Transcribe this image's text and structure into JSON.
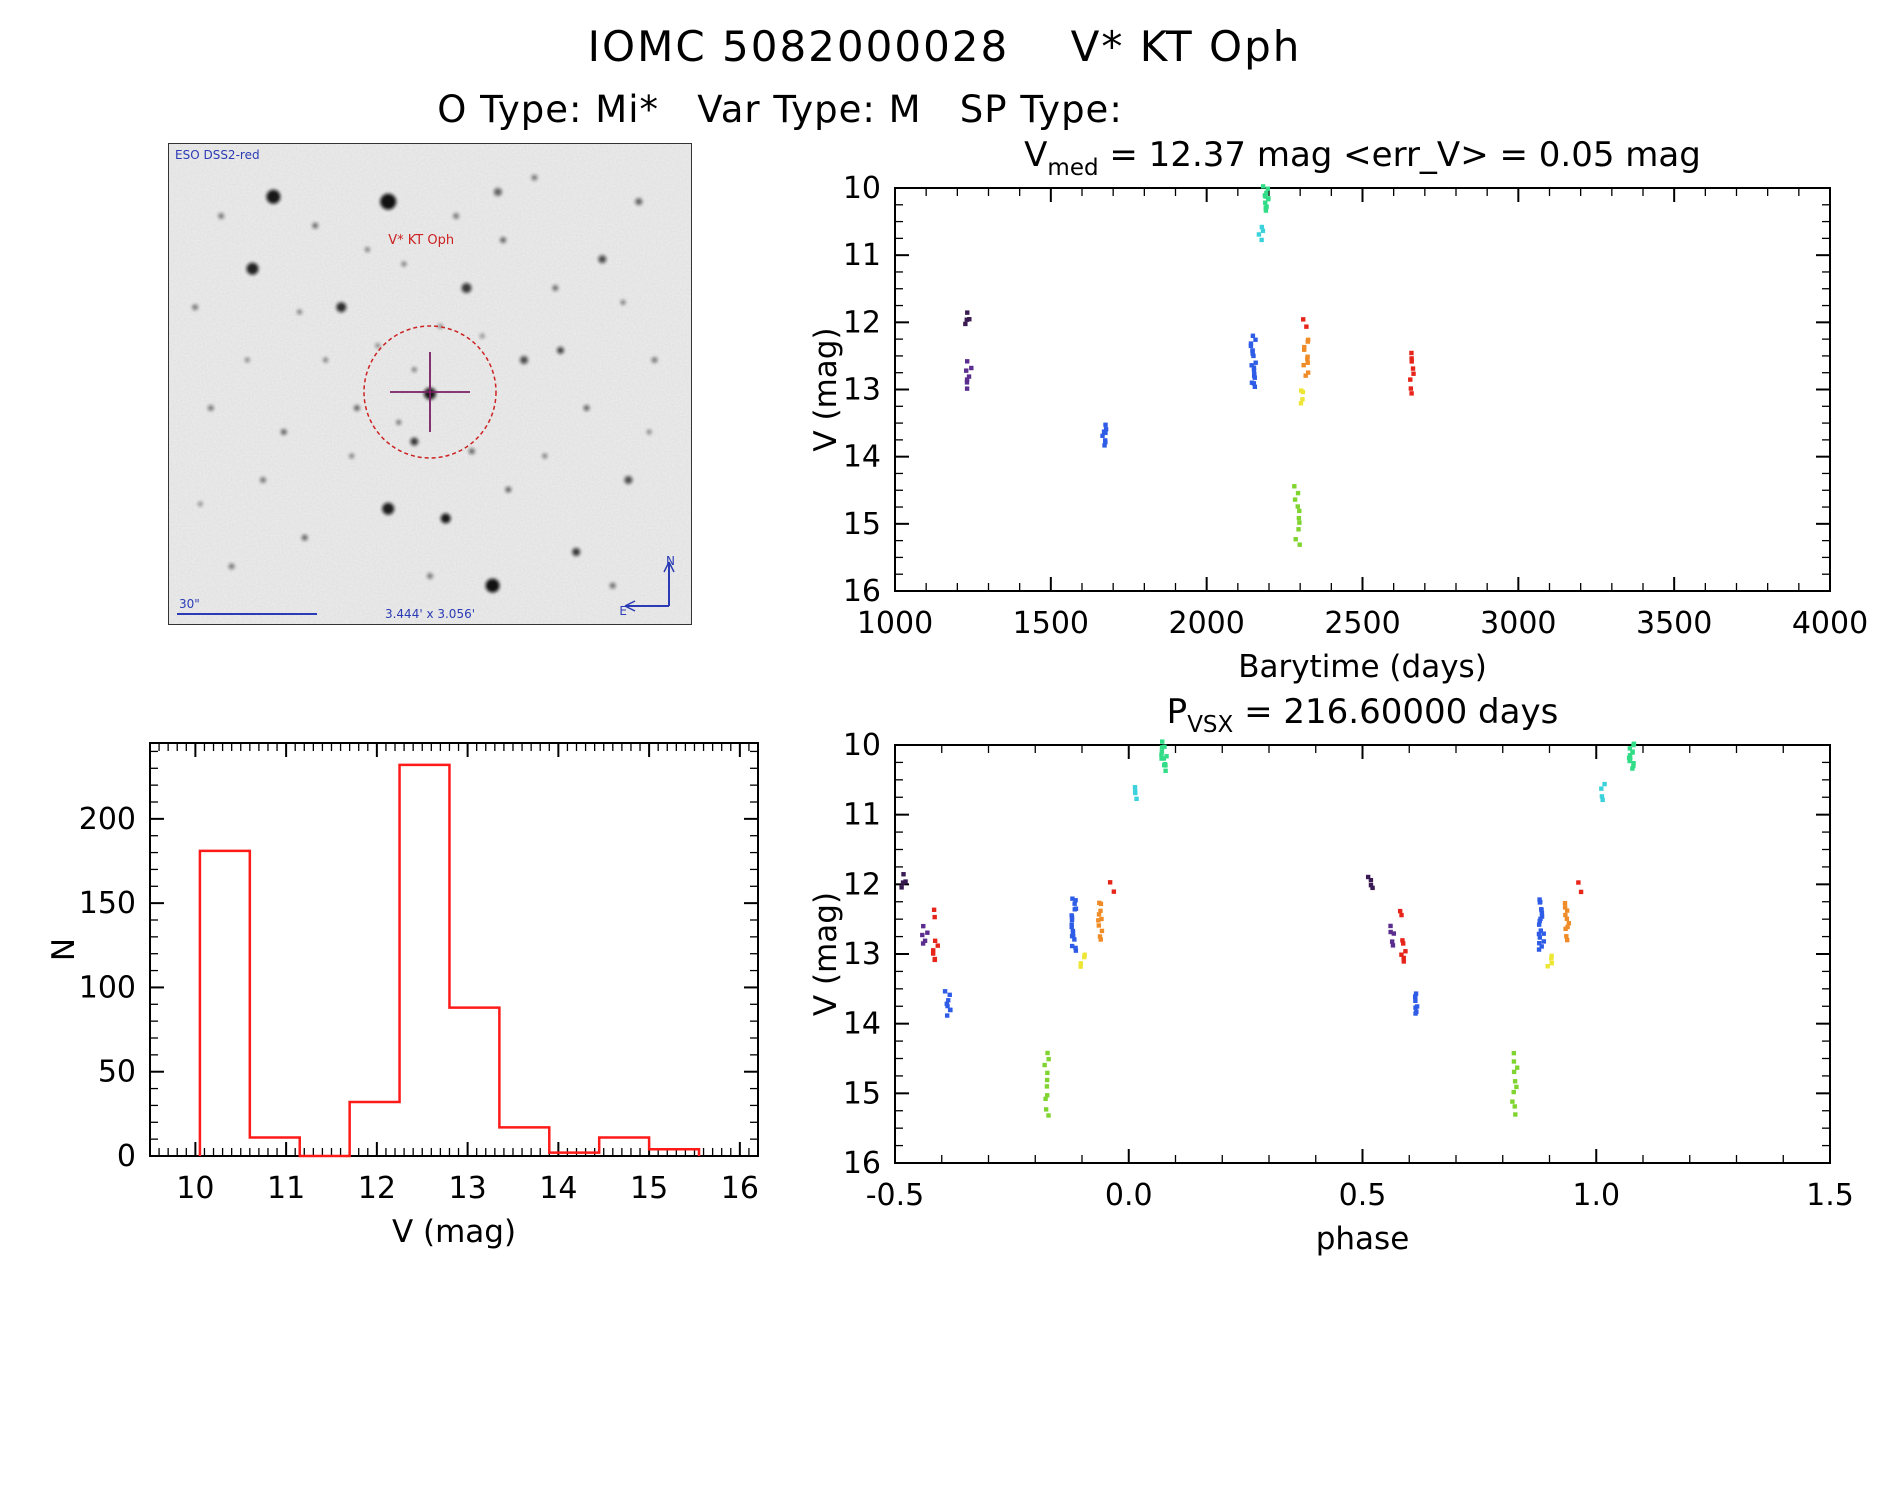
{
  "page": {
    "title": "IOMC 5082000028    V* KT Oph",
    "subtitle": "O Type: Mi*   Var Type: M   SP Type:"
  },
  "finder": {
    "survey_label": "ESO DSS2-red",
    "star_label": "V* KT Oph",
    "size_label": "3.444' x 3.056'",
    "scalebar_label": "30\"",
    "compass_north": "N",
    "compass_east": "E",
    "marker_color": "#cc2222",
    "cross_color": "#7a1f62",
    "annotation_color": "#2a3bb5",
    "stars": [
      [
        20,
        11,
        7,
        0.95
      ],
      [
        42,
        12,
        8,
        0.98
      ],
      [
        16,
        26,
        6,
        0.9
      ],
      [
        33,
        34,
        5,
        0.85
      ],
      [
        57,
        30,
        5,
        0.8
      ],
      [
        83,
        24,
        4,
        0.7
      ],
      [
        90,
        12,
        3.5,
        0.6
      ],
      [
        70,
        7,
        3,
        0.5
      ],
      [
        47,
        62,
        4,
        0.8
      ],
      [
        58,
        64,
        3,
        0.6
      ],
      [
        42,
        76,
        6,
        0.92
      ],
      [
        53,
        78,
        5,
        0.95
      ],
      [
        62,
        92,
        7,
        0.98
      ],
      [
        78,
        85,
        4,
        0.8
      ],
      [
        12,
        88,
        3,
        0.5
      ],
      [
        26,
        82,
        3,
        0.6
      ],
      [
        8,
        55,
        3,
        0.5
      ],
      [
        22,
        60,
        3,
        0.6
      ],
      [
        5,
        34,
        3,
        0.5
      ],
      [
        68,
        45,
        4,
        0.7
      ],
      [
        75,
        43,
        3.5,
        0.75
      ],
      [
        80,
        55,
        3,
        0.6
      ],
      [
        88,
        70,
        4,
        0.7
      ],
      [
        93,
        45,
        3,
        0.5
      ],
      [
        36,
        55,
        3,
        0.6
      ],
      [
        30,
        45,
        2.5,
        0.5
      ],
      [
        64,
        20,
        3,
        0.6
      ],
      [
        74,
        30,
        3,
        0.55
      ],
      [
        10,
        15,
        3,
        0.5
      ],
      [
        55,
        15,
        3,
        0.5
      ],
      [
        63,
        10,
        4,
        0.6
      ],
      [
        87,
        33,
        2.5,
        0.5
      ],
      [
        45,
        25,
        2.5,
        0.5
      ],
      [
        25,
        35,
        2.5,
        0.5
      ],
      [
        15,
        45,
        2.5,
        0.45
      ],
      [
        35,
        65,
        2.5,
        0.5
      ],
      [
        65,
        72,
        3,
        0.6
      ],
      [
        72,
        65,
        2.5,
        0.5
      ],
      [
        85,
        92,
        3,
        0.55
      ],
      [
        50,
        90,
        3,
        0.5
      ],
      [
        18,
        70,
        3,
        0.5
      ],
      [
        40,
        42,
        2.5,
        0.45
      ],
      [
        60,
        40,
        2.5,
        0.4
      ],
      [
        92,
        60,
        2.5,
        0.45
      ],
      [
        6,
        75,
        2.5,
        0.4
      ],
      [
        50,
        52,
        6,
        0.95
      ],
      [
        38,
        22,
        2.5,
        0.5
      ],
      [
        52,
        38,
        2.5,
        0.45
      ],
      [
        28,
        17,
        3,
        0.55
      ],
      [
        47,
        47,
        2.5,
        0.5
      ],
      [
        44,
        58,
        2.5,
        0.55
      ]
    ]
  },
  "chart_data": [
    {
      "id": "barytime",
      "type": "scatter",
      "title": {
        "main": "V",
        "sub": "med",
        "rest": " =  12.37 mag  <err_V>  =  0.05 mag"
      },
      "xlabel": "Barytime (days)",
      "ylabel": "V (mag)",
      "xlim": [
        1000,
        4000
      ],
      "ylim": [
        16,
        10
      ],
      "xticks": [
        1000,
        1500,
        2000,
        2500,
        3000,
        3500,
        4000
      ],
      "xtick_labels": [
        "1000",
        "1500",
        "2000",
        "2500",
        "3000",
        "3500",
        "4000"
      ],
      "yticks": [
        10,
        11,
        12,
        13,
        14,
        15,
        16
      ],
      "ytick_labels": [
        "10",
        "11",
        "12",
        "13",
        "14",
        "15",
        "16"
      ],
      "minor_x": 100,
      "minor_y": 0.25,
      "grid": false,
      "clusters": [
        {
          "x": 1230,
          "y": [
            11.88,
            12.03
          ],
          "n": 4,
          "color": "#3a1a52"
        },
        {
          "x": 1237,
          "y": [
            12.6,
            12.98
          ],
          "n": 7,
          "color": "#5b2d8e"
        },
        {
          "x": 1670,
          "y": [
            13.54,
            13.83
          ],
          "n": 8,
          "color": "#2e5ce6"
        },
        {
          "x": 2150,
          "y": [
            12.21,
            12.98
          ],
          "n": 18,
          "color": "#2e5ce6"
        },
        {
          "x": 2190,
          "y": [
            9.98,
            10.35
          ],
          "n": 12,
          "color": "#33dd88"
        },
        {
          "x": 2175,
          "y": [
            10.58,
            10.78
          ],
          "n": 4,
          "color": "#3cd2dc"
        },
        {
          "x": 2315,
          "y": [
            11.95,
            12.08
          ],
          "n": 2,
          "color": "#e62419"
        },
        {
          "x": 2320,
          "y": [
            12.25,
            12.78
          ],
          "n": 10,
          "color": "#f08c28"
        },
        {
          "x": 2305,
          "y": [
            13.0,
            13.2
          ],
          "n": 4,
          "color": "#ede635"
        },
        {
          "x": 2290,
          "y": [
            14.42,
            15.3
          ],
          "n": 10,
          "color": "#7fd42f"
        },
        {
          "x": 2655,
          "y": [
            12.43,
            13.05
          ],
          "n": 8,
          "color": "#e62419"
        }
      ]
    },
    {
      "id": "histogram",
      "type": "bar",
      "xlabel": "V (mag)",
      "ylabel": "N",
      "xlim": [
        9.5,
        16.2
      ],
      "ylim": [
        0,
        245
      ],
      "xticks": [
        10,
        11,
        12,
        13,
        14,
        15,
        16
      ],
      "xtick_labels": [
        "10",
        "11",
        "12",
        "13",
        "14",
        "15",
        "16"
      ],
      "yticks": [
        0,
        50,
        100,
        150,
        200
      ],
      "ytick_labels": [
        "0",
        "50",
        "100",
        "150",
        "200"
      ],
      "minor_x": 0.1,
      "minor_y": 10,
      "grid": false,
      "color": "#ff1a1a",
      "bin_edges": [
        10.05,
        10.6,
        11.15,
        11.7,
        12.25,
        12.8,
        13.35,
        13.9,
        14.45,
        15.0,
        15.55
      ],
      "counts": [
        181,
        11,
        0,
        32,
        232,
        88,
        17,
        2,
        11,
        4
      ]
    },
    {
      "id": "phase",
      "type": "scatter",
      "title": {
        "main": "P",
        "sub": "VSX",
        "rest": " =  216.60000 days"
      },
      "xlabel": "phase",
      "ylabel": "V (mag)",
      "xlim": [
        -0.5,
        1.5
      ],
      "ylim": [
        16,
        10
      ],
      "xticks": [
        -0.5,
        0,
        0.5,
        1,
        1.5
      ],
      "xtick_labels": [
        "-0.5",
        "0.0",
        "0.5",
        "1.0",
        "1.5"
      ],
      "yticks": [
        10,
        11,
        12,
        13,
        14,
        15,
        16
      ],
      "ytick_labels": [
        "10",
        "11",
        "12",
        "13",
        "14",
        "15",
        "16"
      ],
      "minor_x": 0.1,
      "minor_y": 0.25,
      "grid": false,
      "wrap_period": 1,
      "clusters": [
        {
          "x": -0.483,
          "y": [
            11.88,
            12.05
          ],
          "n": 4,
          "color": "#3a1a52"
        },
        {
          "x": -0.436,
          "y": [
            12.62,
            12.85
          ],
          "n": 5,
          "color": "#5b2d8e"
        },
        {
          "x": -0.42,
          "y": [
            12.38,
            12.46
          ],
          "n": 2,
          "color": "#e62419"
        },
        {
          "x": -0.413,
          "y": [
            12.82,
            13.1
          ],
          "n": 6,
          "color": "#e62419"
        },
        {
          "x": -0.387,
          "y": [
            13.54,
            13.88
          ],
          "n": 8,
          "color": "#2e5ce6"
        },
        {
          "x": -0.175,
          "y": [
            14.42,
            15.3
          ],
          "n": 10,
          "color": "#7fd42f"
        },
        {
          "x": -0.117,
          "y": [
            12.2,
            12.95
          ],
          "n": 18,
          "color": "#2e5ce6"
        },
        {
          "x": -0.098,
          "y": [
            13.0,
            13.2
          ],
          "n": 4,
          "color": "#ede635"
        },
        {
          "x": -0.062,
          "y": [
            12.25,
            12.78
          ],
          "n": 10,
          "color": "#f08c28"
        },
        {
          "x": -0.034,
          "y": [
            11.95,
            12.08
          ],
          "n": 2,
          "color": "#e62419"
        },
        {
          "x": 0.012,
          "y": [
            10.58,
            10.78
          ],
          "n": 4,
          "color": "#3cd2dc"
        },
        {
          "x": 0.075,
          "y": [
            9.98,
            10.35
          ],
          "n": 12,
          "color": "#33dd88"
        }
      ]
    }
  ]
}
